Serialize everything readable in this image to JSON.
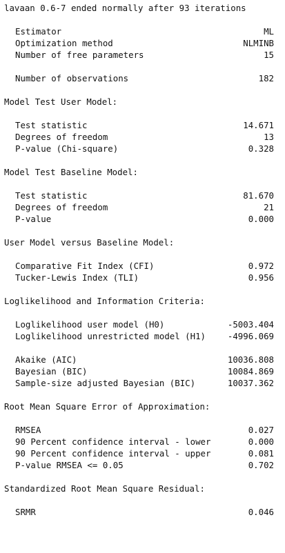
{
  "header": {
    "clipped_previous_line": "lavaan 0.6-7 ended normally after 93 iterations",
    "title": "lavaan 0.6-7 ended normally after 93 iterations"
  },
  "estimation": {
    "rows": [
      {
        "label": "Estimator",
        "value": "ML"
      },
      {
        "label": "Optimization method",
        "value": "NLMINB"
      },
      {
        "label": "Number of free parameters",
        "value": "15"
      },
      {
        "label": "Number of observations",
        "value": "182"
      }
    ]
  },
  "user_model": {
    "title": "Model Test User Model:",
    "rows": [
      {
        "label": "Test statistic",
        "value": "14.671"
      },
      {
        "label": "Degrees of freedom",
        "value": "13"
      },
      {
        "label": "P-value (Chi-square)",
        "value": "0.328"
      }
    ]
  },
  "baseline_model": {
    "title": "Model Test Baseline Model:",
    "rows": [
      {
        "label": "Test statistic",
        "value": "81.670"
      },
      {
        "label": "Degrees of freedom",
        "value": "21"
      },
      {
        "label": "P-value",
        "value": "0.000"
      }
    ]
  },
  "user_vs_baseline": {
    "title": "User Model versus Baseline Model:",
    "rows": [
      {
        "label": "Comparative Fit Index (CFI)",
        "value": "0.972"
      },
      {
        "label": "Tucker-Lewis Index (TLI)",
        "value": "0.956"
      }
    ]
  },
  "loglikelihood": {
    "title": "Loglikelihood and Information Criteria:",
    "rows": [
      {
        "label": "Loglikelihood user model (H0)",
        "value": "-5003.404"
      },
      {
        "label": "Loglikelihood unrestricted model (H1)",
        "value": "-4996.069"
      },
      {
        "label": "Akaike (AIC)",
        "value": "10036.808"
      },
      {
        "label": "Bayesian (BIC)",
        "value": "10084.869"
      },
      {
        "label": "Sample-size adjusted Bayesian (BIC)",
        "value": "10037.362"
      }
    ]
  },
  "rmsea": {
    "title": "Root Mean Square Error of Approximation:",
    "rows": [
      {
        "label": "RMSEA",
        "value": "0.027"
      },
      {
        "label": "90 Percent confidence interval - lower",
        "value": "0.000"
      },
      {
        "label": "90 Percent confidence interval - upper",
        "value": "0.081"
      },
      {
        "label": "P-value RMSEA <= 0.05",
        "value": "0.702"
      }
    ]
  },
  "srmr": {
    "title": "Standardized Root Mean Square Residual:",
    "rows": [
      {
        "label": "SRMR",
        "value": "0.046"
      }
    ]
  }
}
